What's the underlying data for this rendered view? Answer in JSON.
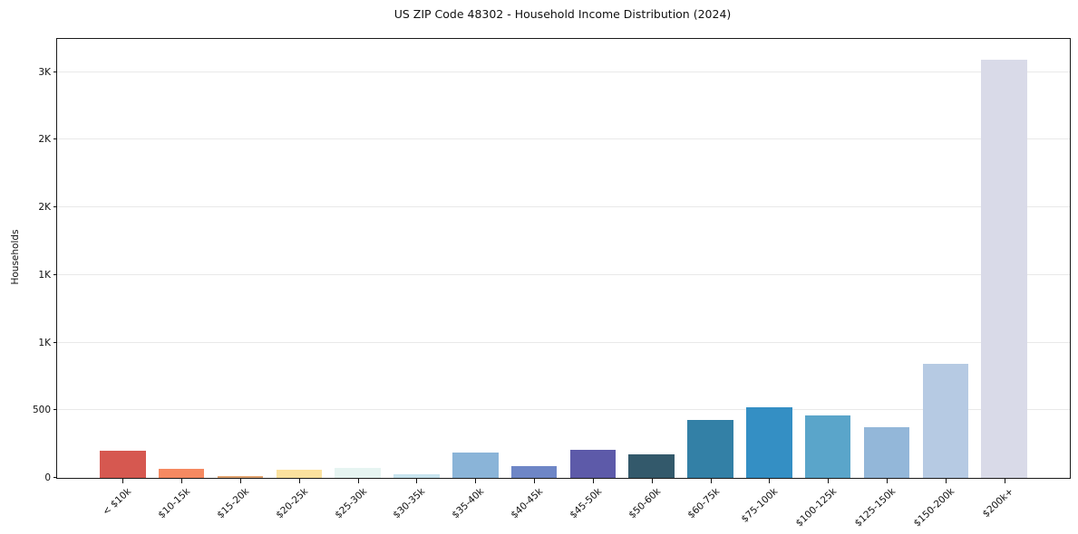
{
  "title": "US ZIP Code 48302 - Household Income Distribution (2024)",
  "chart_data": {
    "type": "bar",
    "title": "US ZIP Code 48302 - Household Income Distribution (2024)",
    "xlabel": "",
    "ylabel": "Households",
    "ylim": [
      0,
      3245
    ],
    "grid": true,
    "legend": false,
    "categories": [
      "< $10k",
      "$10-15k",
      "$15-20k",
      "$20-25k",
      "$25-30k",
      "$30-35k",
      "$35-40k",
      "$40-45k",
      "$45-50k",
      "$50-60k",
      "$60-75k",
      "$75-100k",
      "$100-125k",
      "$125-150k",
      "$150-200k",
      "$200k+"
    ],
    "values": [
      200,
      65,
      15,
      60,
      75,
      25,
      185,
      85,
      205,
      175,
      425,
      520,
      465,
      375,
      845,
      3090
    ],
    "bar_colors": [
      "#d65850",
      "#f58961",
      "#e0a370",
      "#fbe19e",
      "#e6f4f1",
      "#c8e4ef",
      "#8ab4d8",
      "#6e86c6",
      "#5d5aa9",
      "#33596b",
      "#3380a6",
      "#348fc4",
      "#5aa5ca",
      "#93b7d9",
      "#b6cae3",
      "#d9dae8"
    ],
    "y_ticks": [
      {
        "value": 0,
        "label": "0"
      },
      {
        "value": 500,
        "label": "500"
      },
      {
        "value": 1000,
        "label": "1K"
      },
      {
        "value": 1500,
        "label": "1K"
      },
      {
        "value": 2000,
        "label": "2K"
      },
      {
        "value": 2500,
        "label": "2K"
      },
      {
        "value": 3000,
        "label": "3K"
      }
    ],
    "colors": {
      "grid": "#e9e9e9",
      "spine": "#1a1a1a",
      "text": "#111111",
      "background": "#ffffff"
    }
  }
}
